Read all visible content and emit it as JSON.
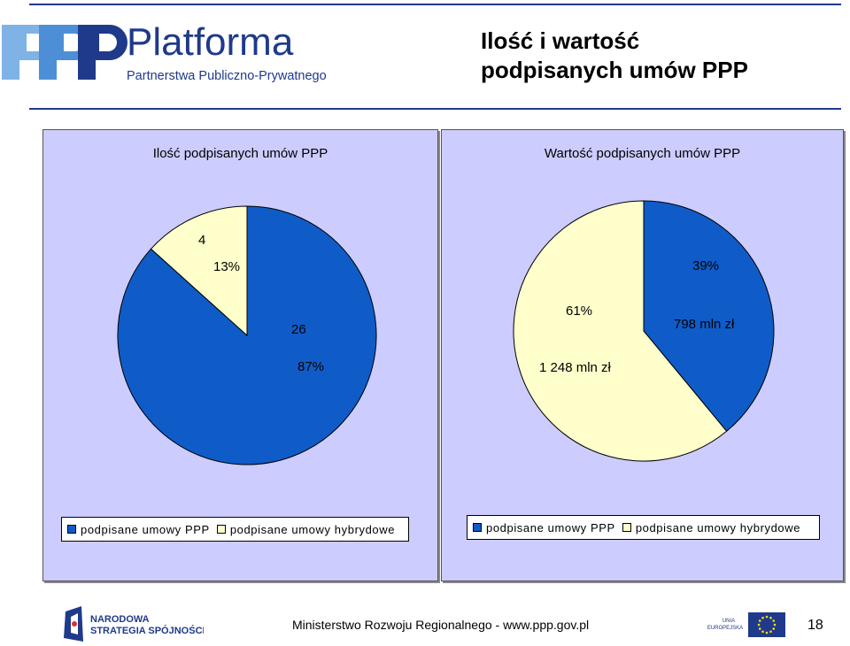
{
  "header": {
    "logo_main": "Platforma",
    "logo_sub": "Partnerstwa Publiczno-Prywatnego",
    "title_line1": "Ilość i wartość",
    "title_line2": "podpisanych umów PPP"
  },
  "colors": {
    "blue": "#0f5cc8",
    "cream": "#ffffcc",
    "panel_bg": "#ccccff",
    "brand": "#1f3a8a",
    "logo_light": "#7fb2e5"
  },
  "chart_data": [
    {
      "type": "pie",
      "title": "Ilość podpisanych umów PPP",
      "categories": [
        "podpisane umowy PPP",
        "podpisane umowy hybrydowe"
      ],
      "values": [
        26,
        4
      ],
      "value_labels": [
        "26",
        "4"
      ],
      "percent_labels": [
        "87%",
        "13%"
      ],
      "colors": [
        "#0f5cc8",
        "#ffffcc"
      ],
      "legend": "bottom"
    },
    {
      "type": "pie",
      "title": "Wartość podpisanych umów PPP",
      "categories": [
        "podpisane umowy PPP",
        "podpisane umowy hybrydowe"
      ],
      "values": [
        798,
        1248
      ],
      "value_labels": [
        "798 mln zł",
        "1 248 mln zł"
      ],
      "percent_labels": [
        "39%",
        "61%"
      ],
      "colors": [
        "#0f5cc8",
        "#ffffcc"
      ],
      "legend": "bottom"
    }
  ],
  "footer": {
    "nss_line1": "NARODOWA",
    "nss_line2": "STRATEGIA SPÓJNOŚCI",
    "ministry": "Ministerstwo Rozwoju Regionalnego - www.ppp.gov.pl",
    "eu_line1": "UNIA",
    "eu_line2": "EUROPEJSKA",
    "page": "18"
  }
}
